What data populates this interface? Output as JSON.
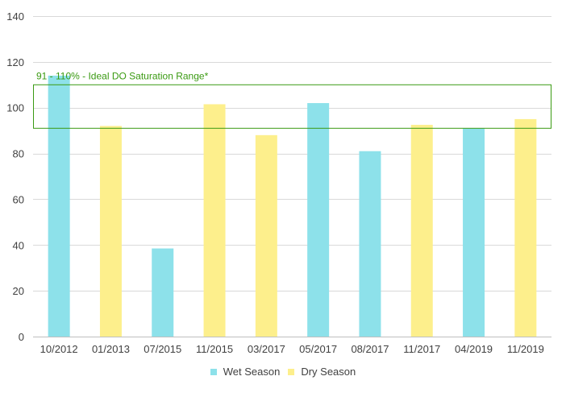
{
  "chart_data": {
    "type": "bar",
    "categories": [
      "10/2012",
      "01/2013",
      "07/2015",
      "11/2015",
      "03/2017",
      "05/2017",
      "08/2017",
      "11/2017",
      "04/2019",
      "11/2019"
    ],
    "values": [
      114,
      92,
      38.5,
      101.5,
      88,
      102,
      81,
      92.5,
      91,
      95
    ],
    "seasons": [
      "wet",
      "dry",
      "wet",
      "dry",
      "dry",
      "wet",
      "wet",
      "dry",
      "wet",
      "dry"
    ],
    "series": [
      {
        "name": "Wet Season",
        "key": "wet",
        "color": "#8de1ea"
      },
      {
        "name": "Dry Season",
        "key": "dry",
        "color": "#fdef8c"
      }
    ],
    "ylim": [
      0,
      140
    ],
    "yticks": [
      0,
      20,
      40,
      60,
      80,
      100,
      120,
      140
    ],
    "grid": true,
    "legend_position": "bottom",
    "annotation": {
      "text": "91 - 110% - Ideal DO Saturation Range*",
      "range": [
        91,
        110
      ],
      "color": "#3a9a12"
    }
  }
}
